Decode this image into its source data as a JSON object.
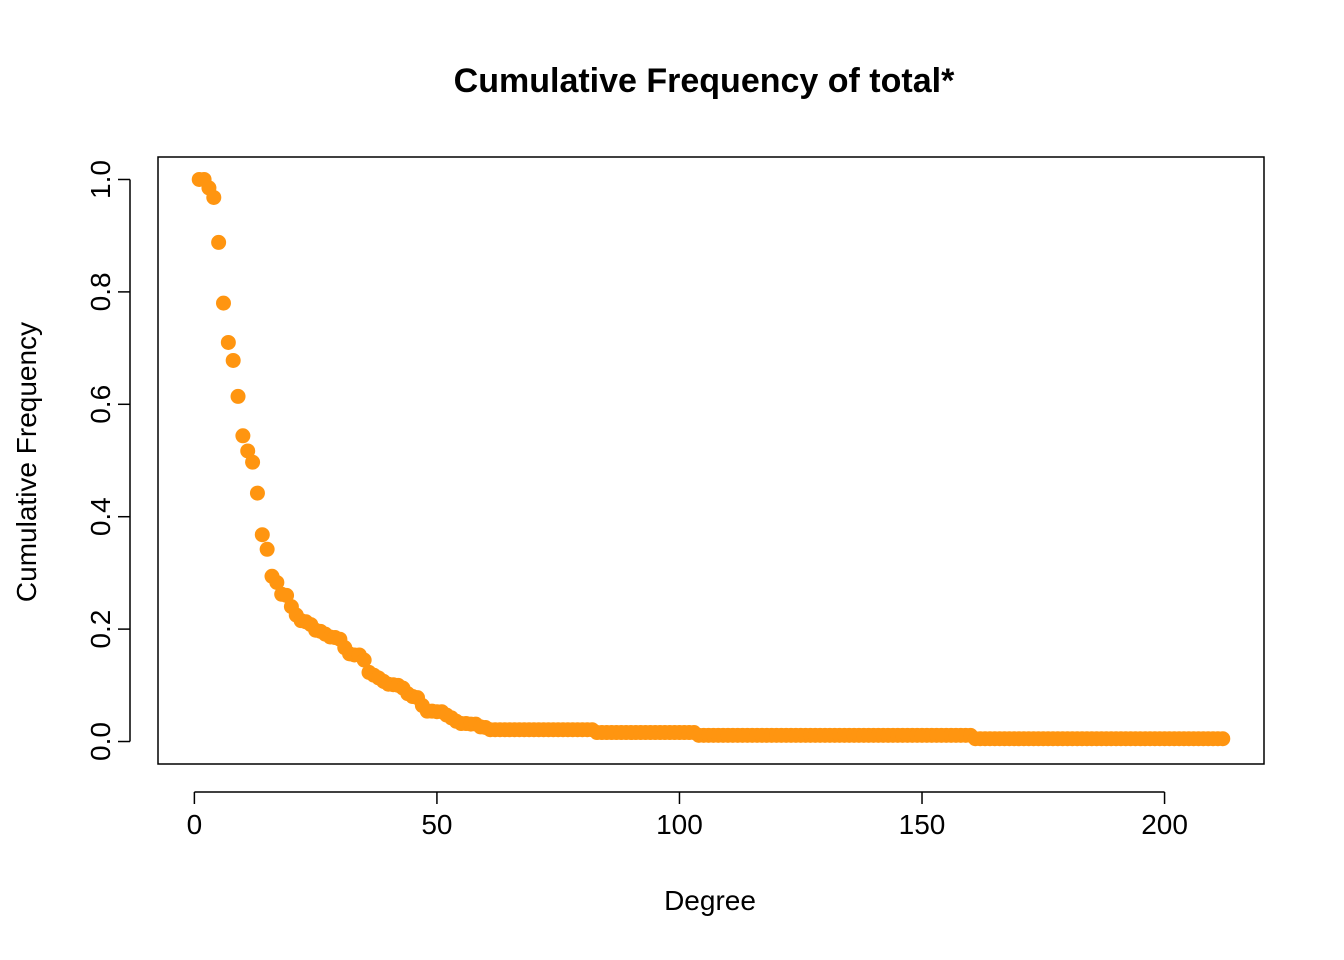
{
  "chart_data": {
    "type": "scatter",
    "title": "Cumulative Frequency of total*",
    "xlabel": "Degree",
    "ylabel": "Cumulative Frequency",
    "xlim": [
      -7.5,
      220.5
    ],
    "ylim": [
      -0.04,
      1.04
    ],
    "x_ticks": [
      0,
      50,
      100,
      150,
      200
    ],
    "y_ticks": [
      0.0,
      0.2,
      0.4,
      0.6,
      0.8,
      1.0
    ],
    "x_tick_labels": [
      "0",
      "50",
      "100",
      "150",
      "200"
    ],
    "y_tick_labels": [
      "0.0",
      "0.2",
      "0.4",
      "0.6",
      "0.8",
      "1.0"
    ],
    "grid": false,
    "point_color": "#FF9510",
    "series": [
      {
        "points": [
          [
            1,
            1.0
          ],
          [
            2,
            1.0
          ],
          [
            3,
            0.985
          ],
          [
            4,
            0.968
          ],
          [
            5,
            0.888
          ],
          [
            6,
            0.78
          ],
          [
            7,
            0.71
          ],
          [
            8,
            0.678
          ],
          [
            9,
            0.614
          ],
          [
            10,
            0.544
          ],
          [
            11,
            0.517
          ],
          [
            12,
            0.497
          ],
          [
            13,
            0.442
          ],
          [
            14,
            0.368
          ],
          [
            15,
            0.342
          ],
          [
            16,
            0.294
          ],
          [
            17,
            0.283
          ],
          [
            18,
            0.262
          ],
          [
            19,
            0.26
          ],
          [
            20,
            0.24
          ],
          [
            21,
            0.225
          ],
          [
            22,
            0.215
          ],
          [
            23,
            0.213
          ],
          [
            24,
            0.208
          ],
          [
            25,
            0.198
          ],
          [
            26,
            0.196
          ],
          [
            27,
            0.191
          ],
          [
            28,
            0.186
          ],
          [
            29,
            0.185
          ],
          [
            30,
            0.182
          ],
          [
            31,
            0.167
          ],
          [
            32,
            0.156
          ],
          [
            33,
            0.154
          ],
          [
            34,
            0.154
          ],
          [
            35,
            0.145
          ],
          [
            36,
            0.123
          ],
          [
            37,
            0.118
          ],
          [
            38,
            0.113
          ],
          [
            39,
            0.107
          ],
          [
            40,
            0.102
          ],
          [
            41,
            0.101
          ],
          [
            42,
            0.1
          ],
          [
            43,
            0.095
          ],
          [
            44,
            0.085
          ],
          [
            45,
            0.08
          ],
          [
            46,
            0.078
          ],
          [
            47,
            0.064
          ],
          [
            48,
            0.054
          ],
          [
            49,
            0.054
          ],
          [
            50,
            0.053
          ],
          [
            51,
            0.053
          ],
          [
            52,
            0.047
          ],
          [
            53,
            0.042
          ],
          [
            54,
            0.036
          ],
          [
            55,
            0.032
          ],
          [
            56,
            0.032
          ],
          [
            57,
            0.031
          ],
          [
            58,
            0.031
          ],
          [
            59,
            0.026
          ],
          [
            60,
            0.025
          ],
          [
            61,
            0.021
          ],
          [
            62,
            0.021
          ],
          [
            63,
            0.021
          ],
          [
            64,
            0.021
          ],
          [
            65,
            0.021
          ],
          [
            66,
            0.021
          ],
          [
            67,
            0.021
          ],
          [
            68,
            0.021
          ],
          [
            69,
            0.021
          ],
          [
            70,
            0.021
          ],
          [
            71,
            0.021
          ],
          [
            72,
            0.021
          ],
          [
            73,
            0.021
          ],
          [
            74,
            0.021
          ],
          [
            75,
            0.021
          ],
          [
            76,
            0.021
          ],
          [
            77,
            0.021
          ],
          [
            78,
            0.021
          ],
          [
            79,
            0.021
          ],
          [
            80,
            0.021
          ],
          [
            81,
            0.021
          ],
          [
            82,
            0.021
          ],
          [
            83,
            0.016
          ],
          [
            84,
            0.016
          ],
          [
            85,
            0.016
          ],
          [
            86,
            0.016
          ],
          [
            87,
            0.016
          ],
          [
            88,
            0.016
          ],
          [
            89,
            0.016
          ],
          [
            90,
            0.016
          ],
          [
            91,
            0.016
          ],
          [
            92,
            0.016
          ],
          [
            93,
            0.016
          ],
          [
            94,
            0.016
          ],
          [
            95,
            0.016
          ],
          [
            96,
            0.016
          ],
          [
            97,
            0.016
          ],
          [
            98,
            0.016
          ],
          [
            99,
            0.016
          ],
          [
            100,
            0.016
          ],
          [
            101,
            0.016
          ],
          [
            102,
            0.016
          ],
          [
            103,
            0.016
          ],
          [
            104,
            0.011
          ],
          [
            105,
            0.011
          ],
          [
            106,
            0.011
          ],
          [
            107,
            0.011
          ],
          [
            108,
            0.011
          ],
          [
            109,
            0.011
          ],
          [
            110,
            0.011
          ],
          [
            111,
            0.011
          ],
          [
            112,
            0.011
          ],
          [
            113,
            0.011
          ],
          [
            114,
            0.011
          ],
          [
            115,
            0.011
          ],
          [
            116,
            0.011
          ],
          [
            117,
            0.011
          ],
          [
            118,
            0.011
          ],
          [
            119,
            0.011
          ],
          [
            120,
            0.011
          ],
          [
            121,
            0.011
          ],
          [
            122,
            0.011
          ],
          [
            123,
            0.011
          ],
          [
            124,
            0.011
          ],
          [
            125,
            0.011
          ],
          [
            126,
            0.011
          ],
          [
            127,
            0.011
          ],
          [
            128,
            0.011
          ],
          [
            129,
            0.011
          ],
          [
            130,
            0.011
          ],
          [
            131,
            0.011
          ],
          [
            132,
            0.011
          ],
          [
            133,
            0.011
          ],
          [
            134,
            0.011
          ],
          [
            135,
            0.011
          ],
          [
            136,
            0.011
          ],
          [
            137,
            0.011
          ],
          [
            138,
            0.011
          ],
          [
            139,
            0.011
          ],
          [
            140,
            0.011
          ],
          [
            141,
            0.011
          ],
          [
            142,
            0.011
          ],
          [
            143,
            0.011
          ],
          [
            144,
            0.011
          ],
          [
            145,
            0.011
          ],
          [
            146,
            0.011
          ],
          [
            147,
            0.011
          ],
          [
            148,
            0.011
          ],
          [
            149,
            0.011
          ],
          [
            150,
            0.011
          ],
          [
            151,
            0.011
          ],
          [
            152,
            0.011
          ],
          [
            153,
            0.011
          ],
          [
            154,
            0.011
          ],
          [
            155,
            0.011
          ],
          [
            156,
            0.011
          ],
          [
            157,
            0.011
          ],
          [
            158,
            0.011
          ],
          [
            159,
            0.011
          ],
          [
            160,
            0.011
          ],
          [
            161,
            0.005
          ],
          [
            162,
            0.005
          ],
          [
            163,
            0.005
          ],
          [
            164,
            0.005
          ],
          [
            165,
            0.005
          ],
          [
            166,
            0.005
          ],
          [
            167,
            0.005
          ],
          [
            168,
            0.005
          ],
          [
            169,
            0.005
          ],
          [
            170,
            0.005
          ],
          [
            171,
            0.005
          ],
          [
            172,
            0.005
          ],
          [
            173,
            0.005
          ],
          [
            174,
            0.005
          ],
          [
            175,
            0.005
          ],
          [
            176,
            0.005
          ],
          [
            177,
            0.005
          ],
          [
            178,
            0.005
          ],
          [
            179,
            0.005
          ],
          [
            180,
            0.005
          ],
          [
            181,
            0.005
          ],
          [
            182,
            0.005
          ],
          [
            183,
            0.005
          ],
          [
            184,
            0.005
          ],
          [
            185,
            0.005
          ],
          [
            186,
            0.005
          ],
          [
            187,
            0.005
          ],
          [
            188,
            0.005
          ],
          [
            189,
            0.005
          ],
          [
            190,
            0.005
          ],
          [
            191,
            0.005
          ],
          [
            192,
            0.005
          ],
          [
            193,
            0.005
          ],
          [
            194,
            0.005
          ],
          [
            195,
            0.005
          ],
          [
            196,
            0.005
          ],
          [
            197,
            0.005
          ],
          [
            198,
            0.005
          ],
          [
            199,
            0.005
          ],
          [
            200,
            0.005
          ],
          [
            201,
            0.005
          ],
          [
            202,
            0.005
          ],
          [
            203,
            0.005
          ],
          [
            204,
            0.005
          ],
          [
            205,
            0.005
          ],
          [
            206,
            0.005
          ],
          [
            207,
            0.005
          ],
          [
            208,
            0.005
          ],
          [
            209,
            0.005
          ],
          [
            210,
            0.005
          ],
          [
            211,
            0.005
          ],
          [
            212,
            0.005
          ]
        ]
      }
    ]
  }
}
